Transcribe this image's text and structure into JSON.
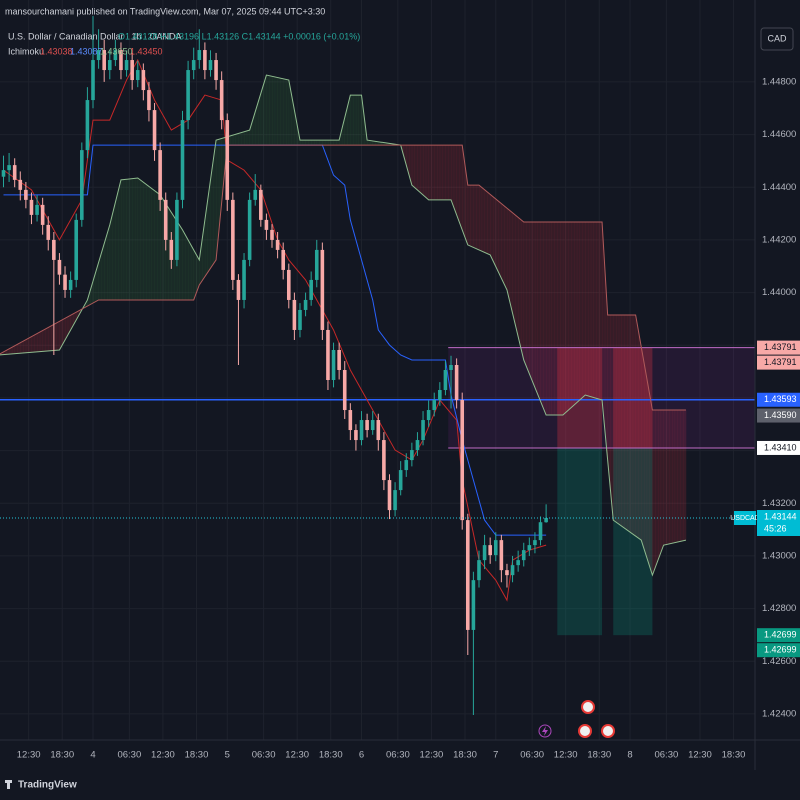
{
  "header": {
    "byline": "mansourchamani published on TradingView.com, Mar 07, 2025 09:44 UTC+3:30",
    "symbol": "U.S. Dollar / Canadian Dollar · 1h · OANDA",
    "ohlc": "O1.43128 H1.43196 L1.43126 C1.43144 +0.00016 (+0.01%)",
    "indicator": "Ichimoku",
    "indicator_values": [
      "1.43038",
      "1.43087",
      "1.43650",
      "1.43450"
    ],
    "currency": "CAD"
  },
  "footer": {
    "brand": "TradingView"
  },
  "chart_data": {
    "type": "candlestick",
    "up_color": "#26a69a",
    "down_color": "#f7a9a7",
    "xlim": [
      -16.625,
      118.34
    ],
    "ylim": [
      1.42301,
      1.45111
    ],
    "xticks": [
      {
        "value": -11.5,
        "label": "12:30"
      },
      {
        "value": -5.5,
        "label": "18:30"
      },
      {
        "value": 0,
        "label": "4"
      },
      {
        "value": 6.5,
        "label": "06:30"
      },
      {
        "value": 12.5,
        "label": "12:30"
      },
      {
        "value": 18.5,
        "label": "18:30"
      },
      {
        "value": 24,
        "label": "5"
      },
      {
        "value": 30.5,
        "label": "06:30"
      },
      {
        "value": 36.5,
        "label": "12:30"
      },
      {
        "value": 42.5,
        "label": "18:30"
      },
      {
        "value": 48,
        "label": "6"
      },
      {
        "value": 54.5,
        "label": "06:30"
      },
      {
        "value": 60.5,
        "label": "12:30"
      },
      {
        "value": 66.5,
        "label": "18:30"
      },
      {
        "value": 72,
        "label": "7"
      },
      {
        "value": 78.5,
        "label": "06:30"
      },
      {
        "value": 84.5,
        "label": "12:30"
      },
      {
        "value": 90.5,
        "label": "18:30"
      },
      {
        "value": 96,
        "label": "8"
      },
      {
        "value": 102.5,
        "label": "06:30"
      },
      {
        "value": 108.5,
        "label": "12:30"
      },
      {
        "value": 114.5,
        "label": "18:30"
      }
    ],
    "yticks": [
      {
        "value": 1.448,
        "label": "1.44800"
      },
      {
        "value": 1.446,
        "label": "1.44600"
      },
      {
        "value": 1.444,
        "label": "1.44400"
      },
      {
        "value": 1.442,
        "label": "1.44200"
      },
      {
        "value": 1.44,
        "label": "1.44000"
      },
      {
        "value": 1.438,
        "label": "1.43800"
      },
      {
        "value": 1.436,
        "label": "1.43600"
      },
      {
        "value": 1.434,
        "label": "1.43400"
      },
      {
        "value": 1.432,
        "label": "1.43200"
      },
      {
        "value": 1.43,
        "label": "1.43000"
      },
      {
        "value": 1.428,
        "label": "1.42800"
      },
      {
        "value": 1.426,
        "label": "1.42600"
      },
      {
        "value": 1.424,
        "label": "1.42400"
      }
    ],
    "x": [
      -16,
      -15,
      -14,
      -13,
      -12,
      -11,
      -10,
      -9,
      -8,
      -7,
      -6,
      -5,
      -4,
      -3,
      -2,
      -1,
      0,
      1,
      2,
      3,
      4,
      5,
      6,
      7,
      8,
      9,
      10,
      11,
      12,
      13,
      14,
      15,
      16,
      17,
      18,
      19,
      20,
      21,
      22,
      23,
      24,
      25,
      26,
      27,
      28,
      29,
      30,
      31,
      32,
      33,
      34,
      35,
      36,
      37,
      38,
      39,
      40,
      41,
      42,
      43,
      44,
      45,
      46,
      47,
      48,
      49,
      50,
      51,
      52,
      53,
      54,
      55,
      56,
      57,
      58,
      59,
      60,
      61,
      62,
      63,
      64,
      65,
      66,
      67,
      68,
      69,
      70,
      71,
      72,
      73,
      74,
      75,
      76,
      77,
      78,
      79,
      80,
      81
    ],
    "ohlc": [
      [
        1.4444,
        1.4452,
        1.444,
        1.44465
      ],
      [
        1.44465,
        1.4453,
        1.4442,
        1.44484
      ],
      [
        1.44484,
        1.4451,
        1.444,
        1.44428
      ],
      [
        1.44428,
        1.4446,
        1.4435,
        1.4439
      ],
      [
        1.4439,
        1.4442,
        1.4432,
        1.44352
      ],
      [
        1.44352,
        1.4438,
        1.4426,
        1.44295
      ],
      [
        1.44295,
        1.4437,
        1.4427,
        1.44333
      ],
      [
        1.44333,
        1.4436,
        1.4422,
        1.44257
      ],
      [
        1.44257,
        1.4429,
        1.4416,
        1.442
      ],
      [
        1.442,
        1.4423,
        1.43763,
        1.44124
      ],
      [
        1.44124,
        1.4415,
        1.4403,
        1.44068
      ],
      [
        1.44068,
        1.441,
        1.4398,
        1.4401
      ],
      [
        1.4401,
        1.4408,
        1.4398,
        1.44048
      ],
      [
        1.44048,
        1.443,
        1.4402,
        1.44276
      ],
      [
        1.44276,
        1.4457,
        1.4425,
        1.44541
      ],
      [
        1.44541,
        1.4478,
        1.4451,
        1.44731
      ],
      [
        1.44731,
        1.4505,
        1.447,
        1.44883
      ],
      [
        1.44883,
        1.45,
        1.4485,
        1.44921
      ],
      [
        1.44921,
        1.4496,
        1.448,
        1.44845
      ],
      [
        1.44845,
        1.4492,
        1.4481,
        1.44883
      ],
      [
        1.44883,
        1.4496,
        1.4486,
        1.44921
      ],
      [
        1.44921,
        1.4495,
        1.4481,
        1.44845
      ],
      [
        1.44845,
        1.4492,
        1.4482,
        1.44883
      ],
      [
        1.44883,
        1.4491,
        1.4477,
        1.44807
      ],
      [
        1.44807,
        1.4488,
        1.4478,
        1.44845
      ],
      [
        1.44845,
        1.4487,
        1.4473,
        1.44769
      ],
      [
        1.44769,
        1.448,
        1.4465,
        1.44693
      ],
      [
        1.44693,
        1.4472,
        1.445,
        1.44541
      ],
      [
        1.44541,
        1.4457,
        1.4431,
        1.44352
      ],
      [
        1.44352,
        1.4438,
        1.4416,
        1.442
      ],
      [
        1.442,
        1.4423,
        1.4409,
        1.44124
      ],
      [
        1.44124,
        1.4438,
        1.441,
        1.44352
      ],
      [
        1.44352,
        1.4469,
        1.4432,
        1.44655
      ],
      [
        1.44655,
        1.4488,
        1.4462,
        1.44845
      ],
      [
        1.44845,
        1.4493,
        1.4481,
        1.44883
      ],
      [
        1.44883,
        1.45,
        1.4485,
        1.44921
      ],
      [
        1.44921,
        1.4495,
        1.4481,
        1.44845
      ],
      [
        1.44845,
        1.4492,
        1.4482,
        1.44883
      ],
      [
        1.44883,
        1.4491,
        1.4477,
        1.44807
      ],
      [
        1.44807,
        1.4484,
        1.4462,
        1.44655
      ],
      [
        1.44655,
        1.4468,
        1.4431,
        1.44352
      ],
      [
        1.44352,
        1.4438,
        1.4401,
        1.44048
      ],
      [
        1.44048,
        1.4407,
        1.43725,
        1.43972
      ],
      [
        1.43972,
        1.4415,
        1.4394,
        1.44124
      ],
      [
        1.44124,
        1.4438,
        1.441,
        1.44352
      ],
      [
        1.44352,
        1.4445,
        1.4433,
        1.4439
      ],
      [
        1.4439,
        1.4441,
        1.4425,
        1.44276
      ],
      [
        1.44276,
        1.443,
        1.442,
        1.44238
      ],
      [
        1.44238,
        1.4426,
        1.4417,
        1.442
      ],
      [
        1.442,
        1.4423,
        1.4413,
        1.44162
      ],
      [
        1.44162,
        1.4419,
        1.4405,
        1.44086
      ],
      [
        1.44086,
        1.4411,
        1.4394,
        1.43972
      ],
      [
        1.43972,
        1.44,
        1.4382,
        1.43858
      ],
      [
        1.43858,
        1.4396,
        1.4383,
        1.43934
      ],
      [
        1.43934,
        1.44,
        1.4391,
        1.43972
      ],
      [
        1.43972,
        1.4408,
        1.4395,
        1.44048
      ],
      [
        1.44048,
        1.442,
        1.4402,
        1.44162
      ],
      [
        1.44162,
        1.4419,
        1.4382,
        1.43858
      ],
      [
        1.43858,
        1.4389,
        1.4363,
        1.43668
      ],
      [
        1.43668,
        1.4381,
        1.4364,
        1.43782
      ],
      [
        1.43782,
        1.4381,
        1.4367,
        1.43706
      ],
      [
        1.43706,
        1.4374,
        1.4352,
        1.43554
      ],
      [
        1.43554,
        1.4358,
        1.4344,
        1.43478
      ],
      [
        1.43478,
        1.435,
        1.434,
        1.4344
      ],
      [
        1.4344,
        1.4355,
        1.4342,
        1.43516
      ],
      [
        1.43516,
        1.4354,
        1.4345,
        1.43478
      ],
      [
        1.43478,
        1.4355,
        1.4346,
        1.43516
      ],
      [
        1.43516,
        1.4354,
        1.434,
        1.4344
      ],
      [
        1.4344,
        1.4347,
        1.4325,
        1.43288
      ],
      [
        1.43288,
        1.4331,
        1.4314,
        1.43174
      ],
      [
        1.43174,
        1.4328,
        1.4315,
        1.4325
      ],
      [
        1.4325,
        1.4336,
        1.4323,
        1.43326
      ],
      [
        1.43326,
        1.4339,
        1.433,
        1.43364
      ],
      [
        1.43364,
        1.4343,
        1.4334,
        1.43402
      ],
      [
        1.43402,
        1.4347,
        1.4338,
        1.4344
      ],
      [
        1.4344,
        1.4355,
        1.4342,
        1.43516
      ],
      [
        1.43516,
        1.4359,
        1.4349,
        1.43554
      ],
      [
        1.43554,
        1.4362,
        1.4353,
        1.43592
      ],
      [
        1.43592,
        1.4366,
        1.4357,
        1.4363
      ],
      [
        1.4363,
        1.4374,
        1.4361,
        1.43706
      ],
      [
        1.43706,
        1.4376,
        1.4356,
        1.43725
      ],
      [
        1.43725,
        1.4375,
        1.4356,
        1.43592
      ],
      [
        1.43592,
        1.4362,
        1.431,
        1.43136
      ],
      [
        1.43136,
        1.4316,
        1.42624,
        1.42719
      ],
      [
        1.42719,
        1.4294,
        1.42396,
        1.42908
      ],
      [
        1.42908,
        1.4302,
        1.4288,
        1.42984
      ],
      [
        1.42984,
        1.4308,
        1.4295,
        1.43041
      ],
      [
        1.43041,
        1.4307,
        1.4297,
        1.43003
      ],
      [
        1.43003,
        1.4309,
        1.4298,
        1.4306
      ],
      [
        1.4306,
        1.4308,
        1.429,
        1.42946
      ],
      [
        1.42946,
        1.4297,
        1.4288,
        1.42927
      ],
      [
        1.42927,
        1.43,
        1.429,
        1.42965
      ],
      [
        1.42965,
        1.4302,
        1.4294,
        1.42984
      ],
      [
        1.42984,
        1.4305,
        1.4296,
        1.43022
      ],
      [
        1.43022,
        1.4307,
        1.43,
        1.43041
      ],
      [
        1.43041,
        1.4309,
        1.4301,
        1.4306
      ],
      [
        1.4306,
        1.4315,
        1.4304,
        1.43128
      ],
      [
        1.43128,
        1.43196,
        1.43126,
        1.43144
      ]
    ],
    "ichimoku": {
      "tenkan": {
        "color": "#c62828",
        "x": [
          -16,
          -11,
          -6,
          -2,
          0,
          3,
          6,
          8,
          11,
          14,
          17,
          20,
          23,
          24,
          27,
          30,
          33,
          35,
          38,
          41,
          43,
          46,
          49,
          51,
          54,
          57,
          59,
          62,
          65,
          66,
          69,
          72,
          74,
          75,
          78,
          81
        ],
        "values": [
          1.44465,
          1.4439,
          1.442,
          1.44352,
          1.44655,
          1.44655,
          1.44807,
          1.44883,
          1.44731,
          1.44617,
          1.44655,
          1.4475,
          1.44731,
          1.44503,
          1.44465,
          1.4439,
          1.442,
          1.44124,
          1.44048,
          1.43934,
          1.43858,
          1.43706,
          1.43592,
          1.43516,
          1.43402,
          1.43364,
          1.4344,
          1.43592,
          1.43516,
          1.43288,
          1.42984,
          1.42908,
          1.42832,
          1.42984,
          1.43022,
          1.43041
        ]
      },
      "kijun": {
        "color": "#2962ff",
        "x": [
          -16,
          -1,
          0,
          41,
          43,
          45,
          46,
          48,
          50,
          51,
          53,
          55,
          57,
          63,
          64,
          66,
          68,
          70,
          72,
          81
        ],
        "values": [
          1.44371,
          1.44371,
          1.4456,
          1.4456,
          1.44446,
          1.44408,
          1.44276,
          1.44124,
          1.43972,
          1.43858,
          1.43801,
          1.43763,
          1.43744,
          1.43744,
          1.43611,
          1.4344,
          1.43288,
          1.43136,
          1.43079,
          1.43079
        ]
      },
      "span_a": {
        "color": "#8fbc8f",
        "x": [
          -17,
          -6,
          -1,
          3,
          5,
          8,
          12,
          16,
          19,
          22,
          28,
          31,
          35,
          37,
          44,
          46,
          48,
          49,
          55,
          57,
          60,
          64,
          67,
          71,
          74,
          77,
          81,
          84,
          88,
          91,
          93,
          98,
          100,
          102,
          106
        ],
        "values": [
          1.43763,
          1.43782,
          1.43972,
          1.44257,
          1.44428,
          1.44435,
          1.44371,
          1.44238,
          1.44124,
          1.44579,
          1.44617,
          1.44826,
          1.44807,
          1.44579,
          1.44579,
          1.4475,
          1.4475,
          1.44579,
          1.4456,
          1.44408,
          1.44352,
          1.44352,
          1.44181,
          1.44143,
          1.4401,
          1.43744,
          1.43535,
          1.43535,
          1.43611,
          1.43592,
          1.43136,
          1.4306,
          1.42927,
          1.43041,
          1.4306
        ]
      },
      "span_b": {
        "color": "#b05a5a",
        "x": [
          -17,
          1,
          18,
          19,
          22,
          24,
          66,
          67,
          69,
          77,
          91,
          92,
          97,
          100,
          106
        ],
        "values": [
          1.43763,
          1.43972,
          1.43972,
          1.44029,
          1.44124,
          1.4456,
          1.4456,
          1.44408,
          1.44408,
          1.44268,
          1.44268,
          1.43915,
          1.43915,
          1.43554,
          1.43554
        ]
      }
    },
    "zone": {
      "x_start": 63.5,
      "top": 1.43791,
      "bottom": 1.4341
    },
    "level": 1.43593,
    "last_price": 1.43144,
    "last_tag": "USDCAD",
    "countdown": "45:26",
    "positions": [
      {
        "x": [
          83,
          91
        ],
        "stop": 1.43791,
        "entry": 1.4341,
        "target": 1.42699
      },
      {
        "x": [
          93,
          100
        ],
        "stop": 1.43791,
        "entry": 1.4341,
        "target": 1.42699
      }
    ],
    "axis_labels": [
      {
        "value": 1.43791,
        "label": "1.43791",
        "bg": "#f7a9a7",
        "fg": "#131722"
      },
      {
        "value": 1.43791,
        "label": "1.43791",
        "bg": "#f7a9a7",
        "fg": "#131722"
      },
      {
        "value": 1.43593,
        "label": "1.43593",
        "bg": "#2962ff",
        "fg": "#ffffff"
      },
      {
        "value": 1.4359,
        "label": "1.43590",
        "bg": "#5d606b",
        "fg": "#ffffff"
      },
      {
        "value": 1.4341,
        "label": "1.43410",
        "bg": "#ffffff",
        "fg": "#131722"
      },
      {
        "value": 1.42699,
        "label": "1.42699",
        "bg": "#089981",
        "fg": "#ffffff"
      },
      {
        "value": 1.42699,
        "label": "1.42699",
        "bg": "#089981",
        "fg": "#ffffff"
      }
    ]
  }
}
